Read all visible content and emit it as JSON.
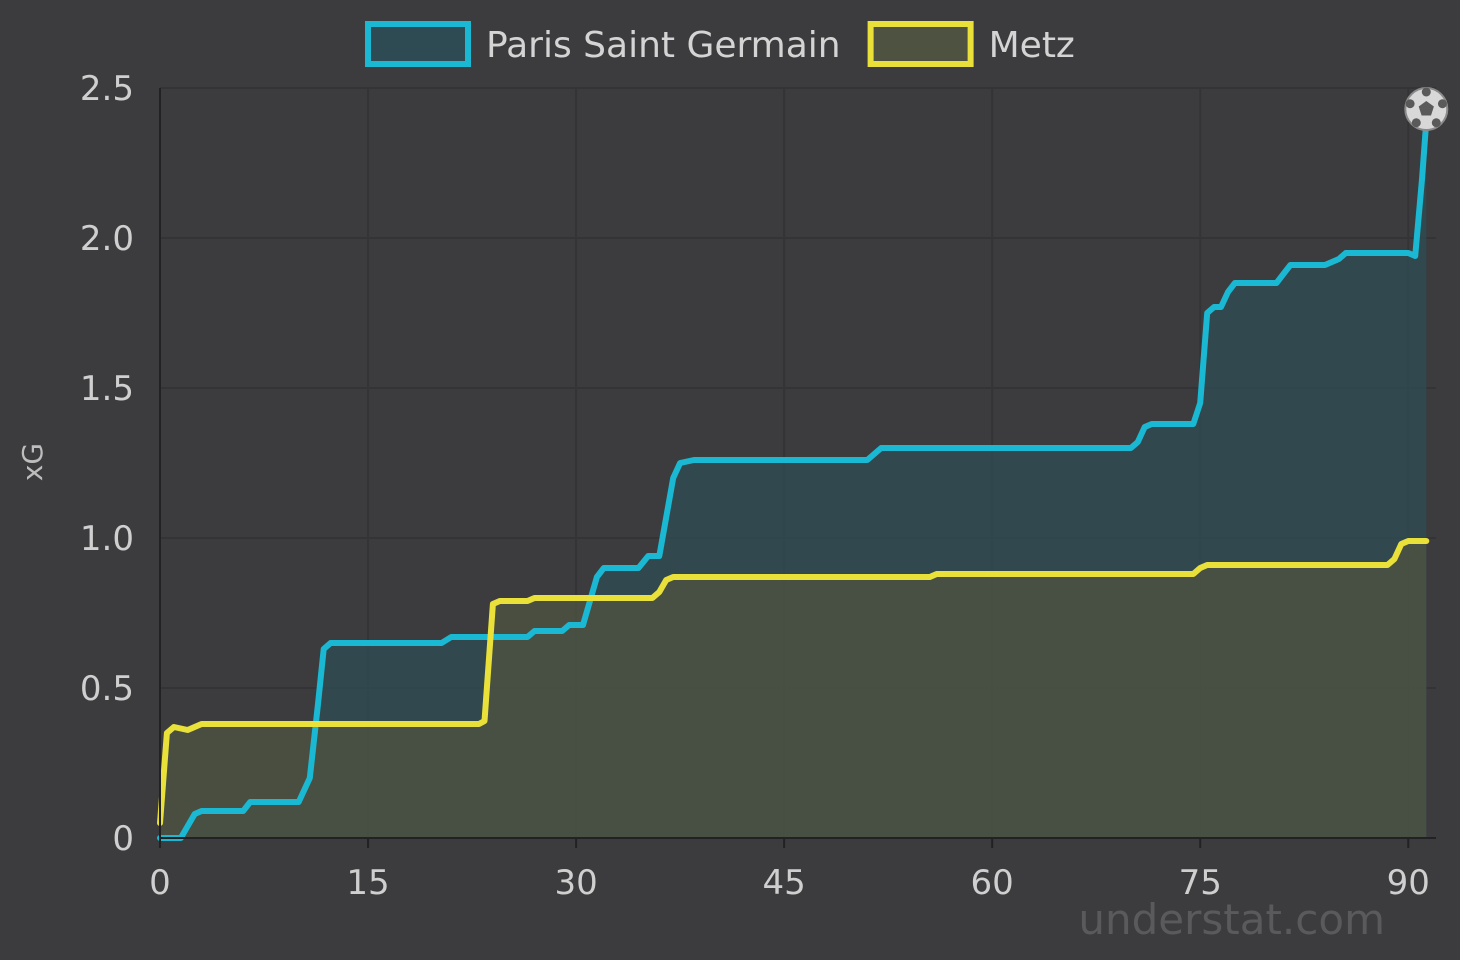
{
  "chart_data": {
    "type": "area",
    "ylabel": "xG",
    "xlim": [
      0,
      92
    ],
    "ylim": [
      0,
      2.5
    ],
    "x_ticks": [
      "0",
      "15",
      "30",
      "45",
      "60",
      "75",
      "90"
    ],
    "x_tick_values": [
      0,
      15,
      30,
      45,
      60,
      75,
      90
    ],
    "y_ticks": [
      "0",
      "0.5",
      "1.0",
      "1.5",
      "2.0",
      "2.5"
    ],
    "y_tick_values": [
      0,
      0.5,
      1.0,
      1.5,
      2.0,
      2.5
    ],
    "grid": true,
    "legend_position": "top-center",
    "watermark": "understat.com",
    "end_marker": "soccer-ball-icon",
    "series": [
      {
        "name": "Paris Saint Germain",
        "color": "#1ab8d2",
        "fill": "#2e4a52",
        "points": [
          [
            0,
            0
          ],
          [
            1.5,
            0
          ],
          [
            2.5,
            0.08
          ],
          [
            3,
            0.09
          ],
          [
            6,
            0.09
          ],
          [
            6.5,
            0.12
          ],
          [
            10,
            0.12
          ],
          [
            10.8,
            0.2
          ],
          [
            11.4,
            0.45
          ],
          [
            11.8,
            0.63
          ],
          [
            12.3,
            0.65
          ],
          [
            20.3,
            0.65
          ],
          [
            21,
            0.67
          ],
          [
            26.5,
            0.67
          ],
          [
            27,
            0.69
          ],
          [
            29,
            0.69
          ],
          [
            29.5,
            0.71
          ],
          [
            30.5,
            0.71
          ],
          [
            31.5,
            0.87
          ],
          [
            32,
            0.9
          ],
          [
            34.5,
            0.9
          ],
          [
            35.2,
            0.94
          ],
          [
            36,
            0.94
          ],
          [
            37,
            1.2
          ],
          [
            37.5,
            1.25
          ],
          [
            38.5,
            1.26
          ],
          [
            51,
            1.26
          ],
          [
            52,
            1.3
          ],
          [
            70,
            1.3
          ],
          [
            70.5,
            1.32
          ],
          [
            71,
            1.37
          ],
          [
            71.5,
            1.38
          ],
          [
            74.5,
            1.38
          ],
          [
            75,
            1.45
          ],
          [
            75.5,
            1.75
          ],
          [
            76,
            1.77
          ],
          [
            76.5,
            1.77
          ],
          [
            77,
            1.82
          ],
          [
            77.5,
            1.85
          ],
          [
            80,
            1.85
          ],
          [
            80.5,
            1.85
          ],
          [
            81,
            1.88
          ],
          [
            81.5,
            1.91
          ],
          [
            84,
            1.91
          ],
          [
            85,
            1.93
          ],
          [
            85.5,
            1.95
          ],
          [
            90,
            1.95
          ],
          [
            90.5,
            1.94
          ],
          [
            91,
            2.2
          ],
          [
            91.3,
            2.39
          ]
        ]
      },
      {
        "name": "Metz",
        "color": "#e9e13a",
        "fill": "#4d5241",
        "points": [
          [
            0,
            0.05
          ],
          [
            0.5,
            0.35
          ],
          [
            1,
            0.37
          ],
          [
            2,
            0.36
          ],
          [
            3,
            0.38
          ],
          [
            23,
            0.38
          ],
          [
            23.4,
            0.39
          ],
          [
            23.8,
            0.65
          ],
          [
            24,
            0.78
          ],
          [
            24.5,
            0.79
          ],
          [
            26.5,
            0.79
          ],
          [
            27,
            0.8
          ],
          [
            35.5,
            0.8
          ],
          [
            36,
            0.82
          ],
          [
            36.5,
            0.86
          ],
          [
            37,
            0.87
          ],
          [
            55.5,
            0.87
          ],
          [
            56,
            0.88
          ],
          [
            74.5,
            0.88
          ],
          [
            75,
            0.9
          ],
          [
            75.5,
            0.91
          ],
          [
            88.5,
            0.91
          ],
          [
            89,
            0.93
          ],
          [
            89.5,
            0.98
          ],
          [
            90,
            0.99
          ],
          [
            91.3,
            0.99
          ]
        ]
      }
    ]
  }
}
